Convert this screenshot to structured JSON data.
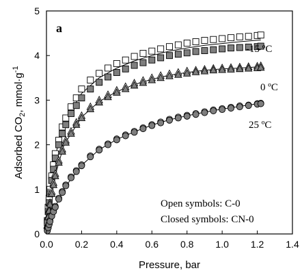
{
  "chart_data": {
    "type": "scatter",
    "panel_label": "a",
    "xlabel": "Pressure, bar",
    "ylabel_main": "Adsorbed CO",
    "ylabel_sub": "2",
    "ylabel_unit": ", mmol·g",
    "ylabel_sup": "-1",
    "xlim": [
      0,
      1.4
    ],
    "ylim": [
      0,
      5
    ],
    "x_ticks": [
      "0.0",
      "0.2",
      "0.4",
      "0.6",
      "0.8",
      "1.0",
      "1.2",
      "1.4"
    ],
    "y_ticks": [
      "0",
      "1",
      "2",
      "3",
      "4",
      "5"
    ],
    "grid": false,
    "legend_lines": [
      "Open symbols: C-0",
      "Closed symbols: CN-0"
    ],
    "temperature_labels": [
      "-15 ºC",
      "0 ºC",
      "25 ºC"
    ],
    "series": [
      {
        "sample": "C-0",
        "temperature": "-15 ºC",
        "marker": "square",
        "filled": false,
        "x": [
          0.005,
          0.01,
          0.015,
          0.02,
          0.03,
          0.04,
          0.05,
          0.07,
          0.09,
          0.11,
          0.14,
          0.17,
          0.2,
          0.25,
          0.3,
          0.35,
          0.4,
          0.45,
          0.5,
          0.55,
          0.6,
          0.65,
          0.7,
          0.75,
          0.8,
          0.85,
          0.9,
          0.95,
          1.0,
          1.05,
          1.1,
          1.15,
          1.2,
          1.22
        ],
        "y": [
          0.3,
          0.6,
          0.8,
          1.0,
          1.3,
          1.55,
          1.8,
          2.1,
          2.4,
          2.6,
          2.85,
          3.05,
          3.25,
          3.45,
          3.6,
          3.72,
          3.82,
          3.9,
          3.98,
          4.05,
          4.1,
          4.15,
          4.2,
          4.24,
          4.28,
          4.31,
          4.34,
          4.36,
          4.38,
          4.4,
          4.42,
          4.43,
          4.45,
          4.46
        ]
      },
      {
        "sample": "CN-0",
        "temperature": "-15 ºC",
        "marker": "square",
        "filled": true,
        "x": [
          0.005,
          0.01,
          0.015,
          0.02,
          0.03,
          0.04,
          0.05,
          0.07,
          0.09,
          0.11,
          0.14,
          0.17,
          0.2,
          0.25,
          0.3,
          0.35,
          0.4,
          0.45,
          0.5,
          0.55,
          0.6,
          0.65,
          0.7,
          0.75,
          0.8,
          0.85,
          0.9,
          0.95,
          1.0,
          1.05,
          1.1,
          1.15,
          1.2,
          1.22
        ],
        "y": [
          0.25,
          0.5,
          0.7,
          0.9,
          1.2,
          1.45,
          1.7,
          2.0,
          2.25,
          2.45,
          2.7,
          2.88,
          3.05,
          3.25,
          3.4,
          3.52,
          3.62,
          3.7,
          3.78,
          3.84,
          3.9,
          3.95,
          4.0,
          4.03,
          4.06,
          4.09,
          4.11,
          4.13,
          4.15,
          4.17,
          4.18,
          4.19,
          4.2,
          4.21
        ]
      },
      {
        "sample": "C-0",
        "temperature": "0 ºC",
        "marker": "triangle",
        "filled": false,
        "x": [
          0.005,
          0.01,
          0.015,
          0.02,
          0.03,
          0.04,
          0.05,
          0.07,
          0.09,
          0.11,
          0.14,
          0.17,
          0.2,
          0.25,
          0.3,
          0.35,
          0.4,
          0.45,
          0.5,
          0.55,
          0.6,
          0.65,
          0.7,
          0.75,
          0.8,
          0.85,
          0.9,
          0.95,
          1.0,
          1.05,
          1.1,
          1.15,
          1.2,
          1.22
        ],
        "y": [
          0.2,
          0.4,
          0.55,
          0.7,
          0.95,
          1.15,
          1.35,
          1.65,
          1.9,
          2.1,
          2.3,
          2.5,
          2.65,
          2.85,
          3.0,
          3.12,
          3.22,
          3.3,
          3.38,
          3.44,
          3.5,
          3.55,
          3.59,
          3.62,
          3.65,
          3.67,
          3.69,
          3.71,
          3.72,
          3.73,
          3.74,
          3.75,
          3.76,
          3.77
        ]
      },
      {
        "sample": "CN-0",
        "temperature": "0 ºC",
        "marker": "triangle",
        "filled": true,
        "x": [
          0.005,
          0.01,
          0.015,
          0.02,
          0.03,
          0.04,
          0.05,
          0.07,
          0.09,
          0.11,
          0.14,
          0.17,
          0.2,
          0.25,
          0.3,
          0.35,
          0.4,
          0.45,
          0.5,
          0.55,
          0.6,
          0.65,
          0.7,
          0.75,
          0.8,
          0.85,
          0.9,
          0.95,
          1.0,
          1.05,
          1.1,
          1.15,
          1.2,
          1.22
        ],
        "y": [
          0.18,
          0.38,
          0.52,
          0.66,
          0.9,
          1.1,
          1.3,
          1.6,
          1.85,
          2.05,
          2.25,
          2.45,
          2.6,
          2.8,
          2.95,
          3.07,
          3.17,
          3.25,
          3.33,
          3.39,
          3.45,
          3.5,
          3.54,
          3.57,
          3.6,
          3.63,
          3.65,
          3.67,
          3.68,
          3.69,
          3.7,
          3.71,
          3.72,
          3.73
        ]
      },
      {
        "sample": "C-0",
        "temperature": "25 ºC",
        "marker": "circle",
        "filled": false,
        "x": [
          0.005,
          0.01,
          0.015,
          0.02,
          0.03,
          0.04,
          0.05,
          0.07,
          0.09,
          0.11,
          0.14,
          0.17,
          0.2,
          0.25,
          0.3,
          0.35,
          0.4,
          0.45,
          0.5,
          0.55,
          0.6,
          0.65,
          0.7,
          0.75,
          0.8,
          0.85,
          0.9,
          0.95,
          1.0,
          1.05,
          1.1,
          1.15,
          1.2,
          1.22
        ],
        "y": [
          0.08,
          0.15,
          0.22,
          0.3,
          0.42,
          0.52,
          0.62,
          0.8,
          0.95,
          1.1,
          1.28,
          1.42,
          1.55,
          1.75,
          1.9,
          2.02,
          2.13,
          2.22,
          2.3,
          2.38,
          2.45,
          2.51,
          2.57,
          2.62,
          2.66,
          2.7,
          2.74,
          2.78,
          2.81,
          2.84,
          2.87,
          2.89,
          2.92,
          2.93
        ]
      },
      {
        "sample": "CN-0",
        "temperature": "25 ºC",
        "marker": "circle",
        "filled": true,
        "x": [
          0.005,
          0.01,
          0.015,
          0.02,
          0.03,
          0.04,
          0.05,
          0.07,
          0.09,
          0.11,
          0.14,
          0.17,
          0.2,
          0.25,
          0.3,
          0.35,
          0.4,
          0.45,
          0.5,
          0.55,
          0.6,
          0.65,
          0.7,
          0.75,
          0.8,
          0.85,
          0.9,
          0.95,
          1.0,
          1.05,
          1.1,
          1.15,
          1.2,
          1.22
        ],
        "y": [
          0.07,
          0.14,
          0.21,
          0.28,
          0.4,
          0.5,
          0.6,
          0.78,
          0.93,
          1.08,
          1.26,
          1.4,
          1.53,
          1.73,
          1.88,
          2.0,
          2.11,
          2.2,
          2.28,
          2.36,
          2.43,
          2.49,
          2.55,
          2.6,
          2.64,
          2.68,
          2.72,
          2.76,
          2.79,
          2.82,
          2.85,
          2.88,
          2.91,
          2.92
        ]
      }
    ],
    "fit_curves": [
      {
        "temperature": "-15 ºC",
        "x": [
          0.005,
          0.02,
          0.05,
          0.1,
          0.2,
          0.3,
          0.4,
          0.5,
          0.6,
          0.7,
          0.8,
          0.9,
          1.0,
          1.1,
          1.22
        ],
        "y": [
          0.28,
          0.95,
          1.75,
          2.5,
          3.15,
          3.5,
          3.72,
          3.88,
          4.0,
          4.1,
          4.17,
          4.23,
          4.27,
          4.31,
          4.35
        ]
      },
      {
        "temperature": "0 ºC",
        "x": [
          0.005,
          0.02,
          0.05,
          0.1,
          0.2,
          0.3,
          0.4,
          0.5,
          0.6,
          0.7,
          0.8,
          0.9,
          1.0,
          1.1,
          1.22
        ],
        "y": [
          0.19,
          0.68,
          1.32,
          2.0,
          2.62,
          2.97,
          3.19,
          3.35,
          3.47,
          3.56,
          3.62,
          3.67,
          3.7,
          3.72,
          3.75
        ]
      },
      {
        "temperature": "25 ºC",
        "x": [
          0.005,
          0.02,
          0.05,
          0.1,
          0.2,
          0.3,
          0.4,
          0.5,
          0.6,
          0.7,
          0.8,
          0.9,
          1.0,
          1.1,
          1.22
        ],
        "y": [
          0.07,
          0.29,
          0.61,
          1.02,
          1.54,
          1.89,
          2.12,
          2.29,
          2.44,
          2.56,
          2.65,
          2.73,
          2.8,
          2.86,
          2.93
        ]
      }
    ]
  }
}
